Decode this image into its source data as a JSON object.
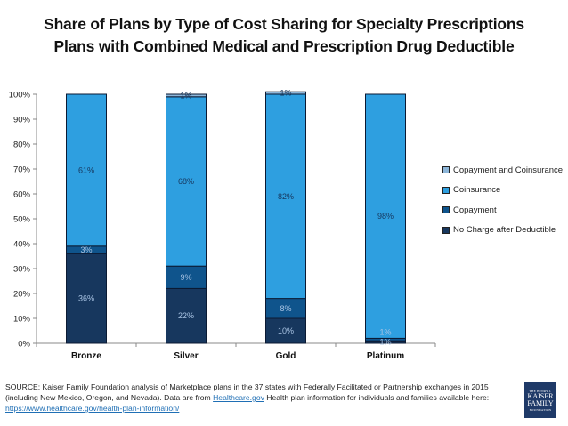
{
  "chart_data": {
    "type": "bar",
    "stacked": true,
    "title": "Share of Plans by Type of Cost Sharing for Specialty Prescriptions",
    "subtitle": "Plans with Combined Medical and Prescription Drug Deductible",
    "xlabel": "",
    "ylabel": "",
    "ylim": [
      0,
      100
    ],
    "yticks": [
      "0%",
      "10%",
      "20%",
      "30%",
      "40%",
      "50%",
      "60%",
      "70%",
      "80%",
      "90%",
      "100%"
    ],
    "categories": [
      "Bronze",
      "Silver",
      "Gold",
      "Platinum"
    ],
    "series": [
      {
        "name": "No Charge after Deductible",
        "color": "#17375e",
        "label_color": "#a9c4e4",
        "values": [
          36,
          22,
          10,
          1
        ]
      },
      {
        "name": "Copayment",
        "color": "#0f548c",
        "label_color": "#a9c4e4",
        "values": [
          3,
          9,
          8,
          1
        ]
      },
      {
        "name": "Coinsurance",
        "color": "#2e9fe0",
        "label_color": "#17375e",
        "values": [
          61,
          68,
          82,
          98
        ]
      },
      {
        "name": "Copayment and Coinsurance",
        "color": "#8db6d9",
        "label_color": "#17375e",
        "values": [
          0,
          1,
          1,
          0
        ]
      }
    ],
    "legend_order": [
      "Copayment and Coinsurance",
      "Coinsurance",
      "Copayment",
      "No Charge after Deductible"
    ],
    "legend_position": "right",
    "grid": false
  },
  "footer": {
    "source_text": "SOURCE: Kaiser Family Foundation analysis of Marketplace plans in the 37 states with Federally Facilitated or Partnership exchanges in 2015 (including New Mexico, Oregon, and Nevada). Data are from ",
    "link1_text": "Healthcare.gov",
    "middle_text": " Health plan information for individuals and families available here: ",
    "link2_text": "https://www.healthcare.gov/health-plan-information/"
  },
  "logo": {
    "line1": "THE HENRY J.",
    "line2": "KAISER",
    "line3": "FAMILY",
    "line4": "FOUNDATION"
  }
}
